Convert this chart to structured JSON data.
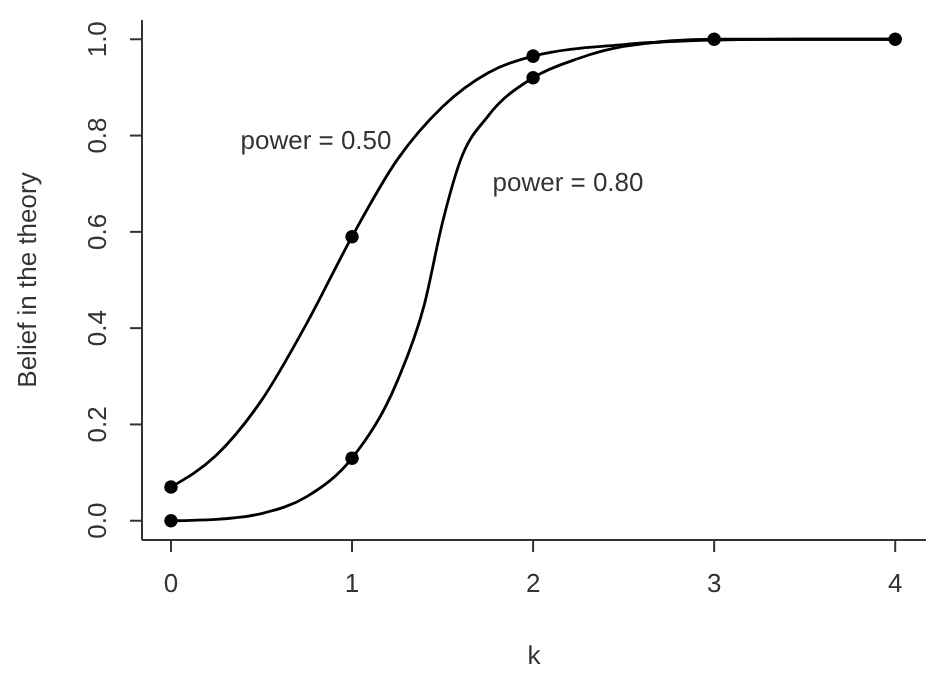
{
  "chart_data": {
    "type": "line",
    "xlabel": "k",
    "ylabel": "Belief in the theory",
    "xlim": [
      -0.16,
      4.17
    ],
    "ylim": [
      -0.04,
      1.04
    ],
    "xticks": [
      0,
      1,
      2,
      3,
      4
    ],
    "yticks": [
      {
        "value": 0,
        "label": "0.0"
      },
      {
        "value": 0.2,
        "label": "0.2"
      },
      {
        "value": 0.4,
        "label": "0.4"
      },
      {
        "value": 0.6,
        "label": "0.6"
      },
      {
        "value": 0.8,
        "label": "0.8"
      },
      {
        "value": 1,
        "label": "1.0"
      }
    ],
    "series": [
      {
        "name": "power = 0.50",
        "color": "#000000",
        "marker": "none",
        "x": [
          0,
          0.25,
          0.5,
          0.75,
          1,
          1.25,
          1.5,
          1.75,
          2,
          2.5,
          3,
          3.5,
          4
        ],
        "values": [
          0.07,
          0.136,
          0.25,
          0.41,
          0.59,
          0.75,
          0.86,
          0.93,
          0.965,
          0.989,
          0.998,
          1.0,
          1.0
        ]
      },
      {
        "name": "power = 0.80",
        "color": "#000000",
        "marker": "none",
        "x": [
          0,
          0.25,
          0.5,
          0.75,
          1,
          1.25,
          1.4,
          1.5,
          1.6,
          1.75,
          2,
          2.25,
          2.5,
          3,
          3.5,
          4
        ],
        "values": [
          0,
          0.003,
          0.015,
          0.05,
          0.13,
          0.29,
          0.45,
          0.62,
          0.75,
          0.84,
          0.92,
          0.96,
          0.985,
          1.0,
          1.0,
          1.0
        ]
      },
      {
        "type": "scatter",
        "color": "#000000",
        "marker": "circle",
        "x": [
          0,
          1,
          2,
          3,
          4
        ],
        "values": [
          0.07,
          0.59,
          0.965,
          1.0,
          1.0
        ]
      },
      {
        "type": "scatter",
        "color": "#000000",
        "marker": "circle",
        "x": [
          0,
          1,
          2
        ],
        "values": [
          0,
          0.13,
          0.92
        ]
      }
    ]
  }
}
